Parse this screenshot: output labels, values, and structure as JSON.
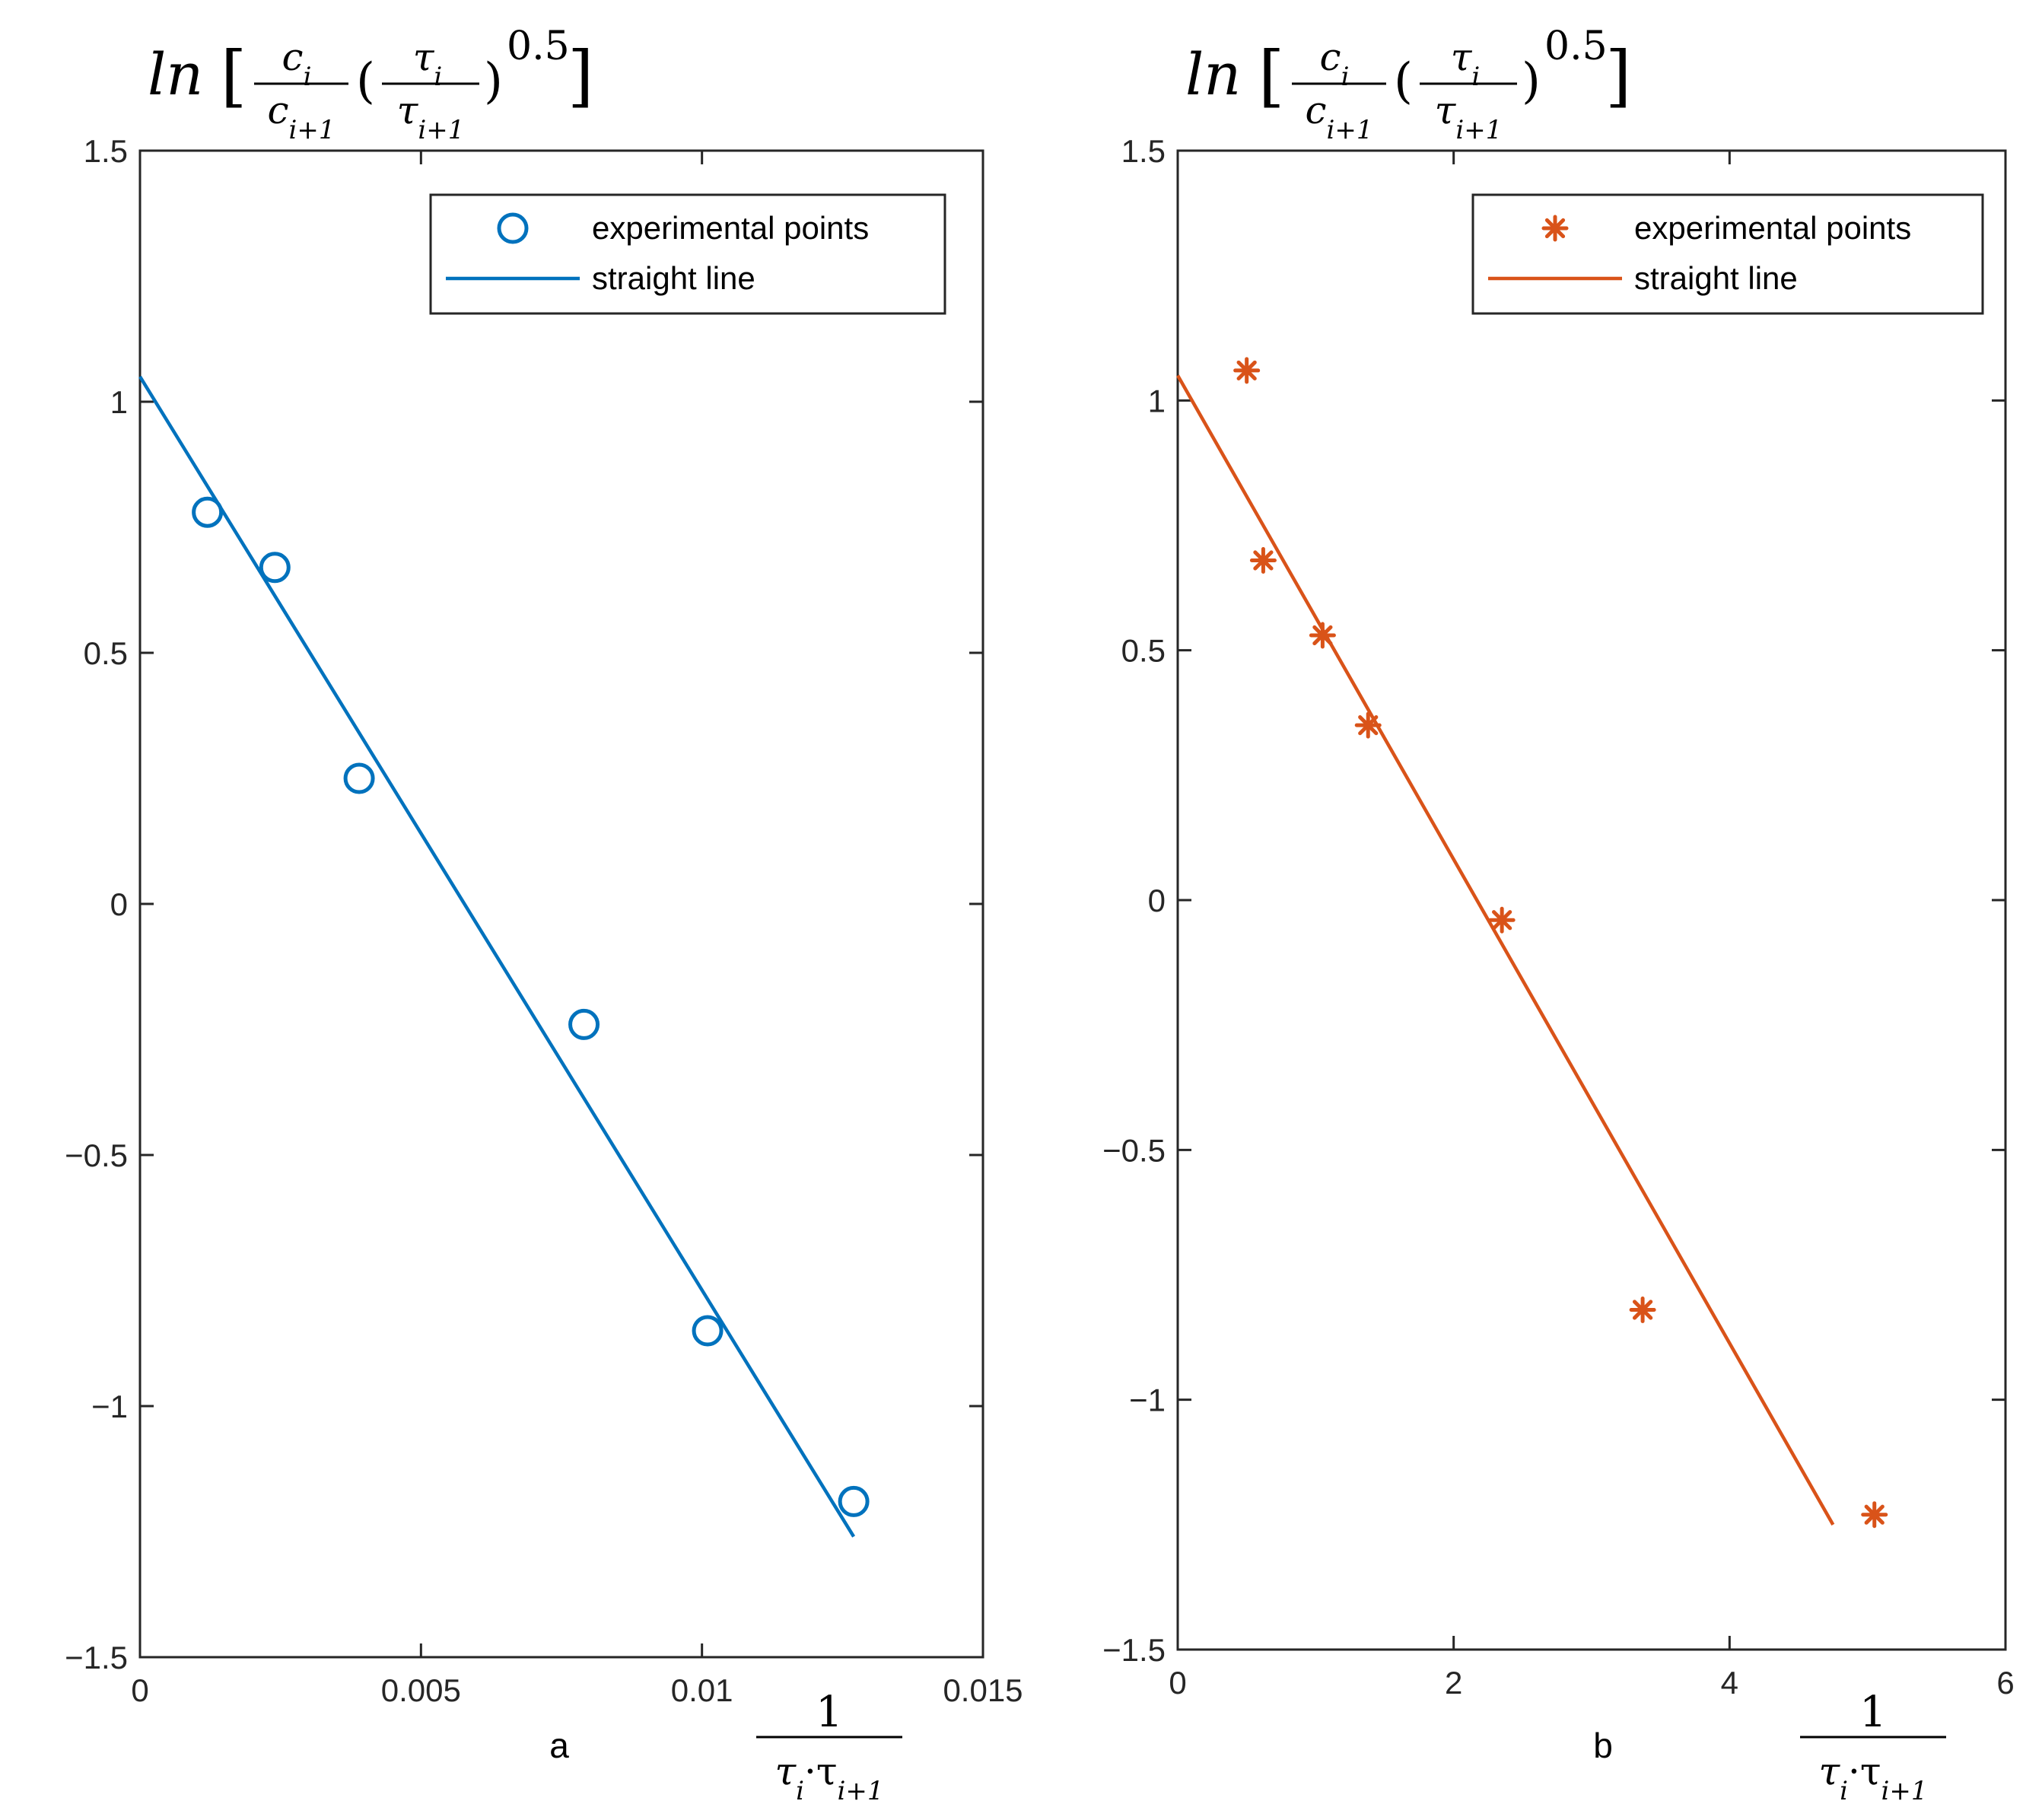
{
  "figure": {
    "colors": {
      "axes": "#262626",
      "background": "#ffffff",
      "text": "#000000"
    }
  },
  "chart_data": [
    {
      "type": "scatter",
      "panel_label": "a",
      "title": "ln[ (c_i / c_{i+1}) (τ_i / τ_{i+1})^0.5 ]",
      "ylabel": "ln[ (c_i / c_{i+1}) (τ_i / τ_{i+1})^0.5 ]",
      "xlabel": "1 / (τ_i · τ_{i+1})",
      "xlim": [
        0,
        0.015
      ],
      "ylim": [
        -1.5,
        1.5
      ],
      "xticks": [
        0,
        0.005,
        0.01,
        0.015
      ],
      "xtick_labels": [
        "0",
        "0.005",
        "0.01",
        "0.015"
      ],
      "yticks": [
        -1.5,
        -1,
        -0.5,
        0,
        0.5,
        1,
        1.5
      ],
      "ytick_labels": [
        "−1.5",
        "−1",
        "−0.5",
        "0",
        "0.5",
        "1",
        "1.5"
      ],
      "grid": false,
      "legend": {
        "location": "top-right",
        "entries": [
          "experimental points",
          "straight line"
        ]
      },
      "series": [
        {
          "name": "experimental points",
          "style": "markers",
          "marker": "circle",
          "color": "#0072BD",
          "x": [
            0.0012,
            0.0024,
            0.0039,
            0.0079,
            0.0101,
            0.0127
          ],
          "y": [
            0.78,
            0.67,
            0.25,
            -0.24,
            -0.85,
            -1.19
          ]
        },
        {
          "name": "straight line",
          "style": "line",
          "color": "#0072BD",
          "x": [
            0,
            0.0127
          ],
          "y": [
            1.05,
            -1.26
          ]
        }
      ]
    },
    {
      "type": "scatter",
      "panel_label": "b",
      "title": "ln[ (c_i / c_{i+1}) (τ_i / τ_{i+1})^0.5 ]",
      "ylabel": "ln[ (c_i / c_{i+1}) (τ_i / τ_{i+1})^0.5 ]",
      "xlabel": "1 / (τ_i · τ_{i+1})",
      "xlim": [
        0,
        6
      ],
      "ylim": [
        -1.5,
        1.5
      ],
      "xticks": [
        0,
        2,
        4,
        6
      ],
      "xtick_labels": [
        "0",
        "2",
        "4",
        "6"
      ],
      "yticks": [
        -1.5,
        -1,
        -0.5,
        0,
        0.5,
        1,
        1.5
      ],
      "ytick_labels": [
        "−1.5",
        "−1",
        "−0.5",
        "0",
        "0.5",
        "1",
        "1.5"
      ],
      "grid": false,
      "legend": {
        "location": "top-right",
        "entries": [
          "experimental points",
          "straight line"
        ]
      },
      "series": [
        {
          "name": "experimental points",
          "style": "markers",
          "marker": "asterisk",
          "color": "#D95319",
          "x": [
            0.5,
            0.62,
            1.05,
            1.38,
            2.35,
            3.37,
            5.05
          ],
          "y": [
            1.06,
            0.68,
            0.53,
            0.35,
            -0.04,
            -0.82,
            -1.23
          ]
        },
        {
          "name": "straight line",
          "style": "line",
          "color": "#D95319",
          "x": [
            0,
            4.75
          ],
          "y": [
            1.05,
            -1.25
          ]
        }
      ]
    }
  ]
}
